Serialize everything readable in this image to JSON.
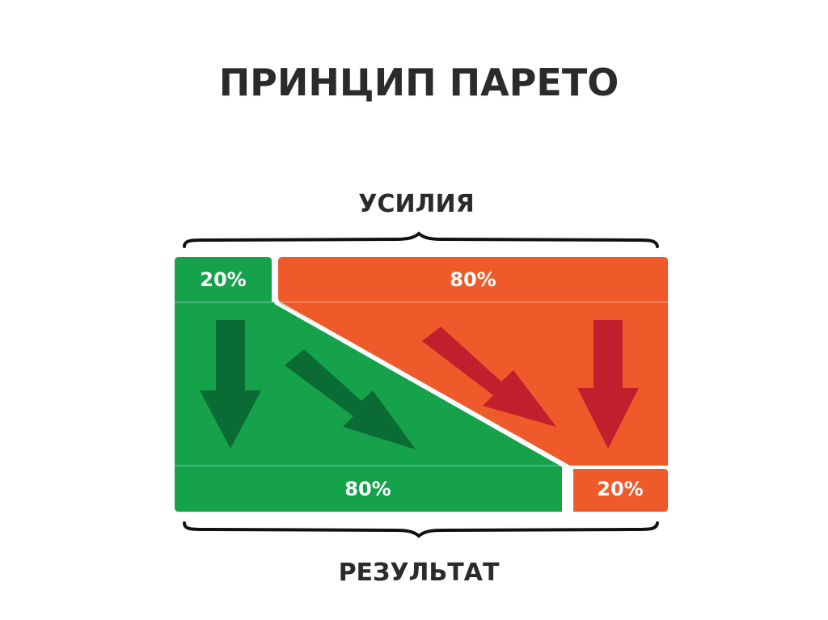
{
  "title": "ПРИНЦИП ПАРЕТО",
  "effort_label": "УСИЛИЯ",
  "result_label": "РЕЗУЛЬТАТ",
  "effort": {
    "green_share": "20%",
    "red_share": "80%"
  },
  "result": {
    "green_share": "80%",
    "red_share": "20%"
  },
  "colors": {
    "green": "#15a24b",
    "green_arrow": "#0a6b35",
    "orange": "#ef5a2a",
    "red_arrow": "#c0202e",
    "text": "#2b2b2b"
  },
  "icons": [
    "arrow-down-icon",
    "arrow-diagonal-icon"
  ]
}
